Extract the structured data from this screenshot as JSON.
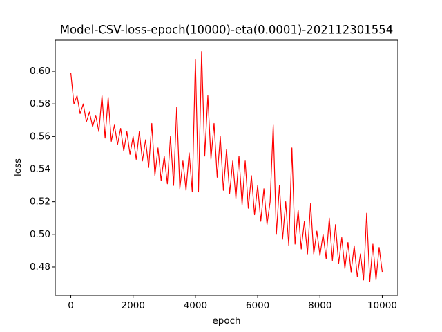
{
  "chart_data": {
    "type": "line",
    "title": "Model-CSV-loss-epoch(10000)-eta(0.0001)-202112301554",
    "x_label": "epoch",
    "y_label": "loss",
    "x": [
      0,
      100,
      200,
      300,
      400,
      500,
      600,
      700,
      800,
      900,
      1000,
      1100,
      1200,
      1300,
      1400,
      1500,
      1600,
      1700,
      1800,
      1900,
      2000,
      2100,
      2200,
      2300,
      2400,
      2500,
      2600,
      2700,
      2800,
      2900,
      3000,
      3100,
      3200,
      3300,
      3400,
      3500,
      3600,
      3700,
      3800,
      3900,
      4000,
      4100,
      4200,
      4300,
      4400,
      4500,
      4600,
      4700,
      4800,
      4900,
      5000,
      5100,
      5200,
      5300,
      5400,
      5500,
      5600,
      5700,
      5800,
      5900,
      6000,
      6100,
      6200,
      6300,
      6400,
      6500,
      6600,
      6700,
      6800,
      6900,
      7000,
      7100,
      7200,
      7300,
      7400,
      7500,
      7600,
      7700,
      7800,
      7900,
      8000,
      8100,
      8200,
      8300,
      8400,
      8500,
      8600,
      8700,
      8800,
      8900,
      9000,
      9100,
      9200,
      9300,
      9400,
      9500,
      9600,
      9700,
      9800,
      9900,
      10000
    ],
    "series": [
      {
        "color": "#ff0000",
        "values": [
          0.599,
          0.58,
          0.585,
          0.574,
          0.58,
          0.569,
          0.575,
          0.566,
          0.573,
          0.563,
          0.585,
          0.559,
          0.584,
          0.557,
          0.567,
          0.555,
          0.565,
          0.551,
          0.563,
          0.549,
          0.56,
          0.546,
          0.563,
          0.545,
          0.558,
          0.541,
          0.568,
          0.536,
          0.553,
          0.533,
          0.548,
          0.531,
          0.56,
          0.53,
          0.578,
          0.528,
          0.545,
          0.527,
          0.55,
          0.526,
          0.607,
          0.526,
          0.612,
          0.548,
          0.585,
          0.546,
          0.568,
          0.535,
          0.56,
          0.527,
          0.552,
          0.525,
          0.545,
          0.522,
          0.548,
          0.518,
          0.545,
          0.516,
          0.536,
          0.512,
          0.53,
          0.508,
          0.528,
          0.506,
          0.52,
          0.567,
          0.5,
          0.53,
          0.497,
          0.52,
          0.493,
          0.553,
          0.494,
          0.515,
          0.491,
          0.508,
          0.488,
          0.519,
          0.488,
          0.502,
          0.487,
          0.5,
          0.485,
          0.51,
          0.484,
          0.506,
          0.482,
          0.498,
          0.479,
          0.495,
          0.477,
          0.493,
          0.474,
          0.488,
          0.472,
          0.513,
          0.471,
          0.494,
          0.472,
          0.492,
          0.477
        ]
      }
    ],
    "xlim": [
      -500,
      10500
    ],
    "xticks": [
      0,
      2000,
      4000,
      6000,
      8000,
      10000
    ],
    "ylim": [
      0.4626,
      0.6191
    ],
    "yticks": [
      {
        "value": 0.48,
        "label": "0.48"
      },
      {
        "value": 0.5,
        "label": "0.50"
      },
      {
        "value": 0.52,
        "label": "0.52"
      },
      {
        "value": 0.54,
        "label": "0.54"
      },
      {
        "value": 0.56,
        "label": "0.56"
      },
      {
        "value": 0.58,
        "label": "0.58"
      },
      {
        "value": 0.6,
        "label": "0.60"
      }
    ],
    "grid": false
  }
}
